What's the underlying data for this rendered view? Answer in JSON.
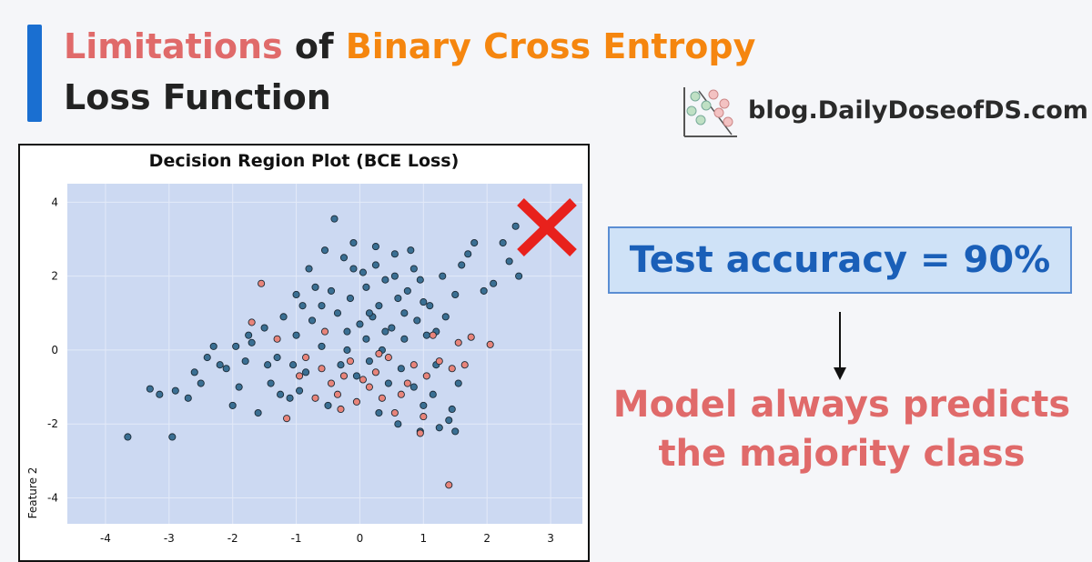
{
  "header": {
    "title_part1": "Limitations",
    "title_part2": "of",
    "title_part3": "Binary Cross Entropy",
    "title_line2": "Loss Function",
    "colors": {
      "part1": "#e06a6a",
      "part2": "#222222",
      "part3": "#f5860f",
      "line2": "#222222",
      "accent": "#1a6fd1"
    }
  },
  "brand": {
    "text": "blog.DailyDoseofDS.com",
    "icon": "scatter-logo-icon"
  },
  "accuracy": {
    "text": "Test accuracy = 90%"
  },
  "conclusion": {
    "line1": "Model always predicts",
    "line2": "the majority class"
  },
  "chart_data": {
    "type": "scatter",
    "title": "Decision Region Plot (BCE Loss)",
    "xlabel": "",
    "ylabel": "Feature 2",
    "xlim": [
      -4.6,
      3.5
    ],
    "ylim": [
      -4.7,
      4.5
    ],
    "xticks": [
      -4,
      -3,
      -2,
      -1,
      0,
      1,
      2,
      3
    ],
    "yticks": [
      -4,
      -2,
      0,
      2,
      4
    ],
    "grid": true,
    "background_region_color": "#ccd9f2",
    "marker_overlay": "red-x-icon",
    "series": [
      {
        "color": "#3a6f93",
        "points": [
          [
            -3.65,
            -2.35
          ],
          [
            -2.95,
            -2.35
          ],
          [
            -3.3,
            -1.05
          ],
          [
            -3.15,
            -1.2
          ],
          [
            -2.9,
            -1.1
          ],
          [
            -2.7,
            -1.3
          ],
          [
            -2.6,
            -0.6
          ],
          [
            -2.4,
            -0.2
          ],
          [
            -2.3,
            0.1
          ],
          [
            -2.1,
            -0.5
          ],
          [
            -1.9,
            -1.0
          ],
          [
            -2.0,
            -1.5
          ],
          [
            -1.8,
            -0.3
          ],
          [
            -1.7,
            0.2
          ],
          [
            -1.5,
            0.6
          ],
          [
            -1.4,
            -0.9
          ],
          [
            -1.3,
            -0.2
          ],
          [
            -1.2,
            0.9
          ],
          [
            -1.1,
            -1.3
          ],
          [
            -1.0,
            0.4
          ],
          [
            -0.9,
            1.2
          ],
          [
            -0.85,
            -0.6
          ],
          [
            -0.8,
            2.2
          ],
          [
            -0.7,
            1.7
          ],
          [
            -0.6,
            0.1
          ],
          [
            -0.55,
            2.7
          ],
          [
            -0.4,
            3.55
          ],
          [
            -0.35,
            1.0
          ],
          [
            -0.3,
            -0.4
          ],
          [
            -0.25,
            2.5
          ],
          [
            -0.2,
            0.5
          ],
          [
            -0.15,
            1.4
          ],
          [
            -0.1,
            2.9
          ],
          [
            -0.05,
            -0.7
          ],
          [
            0.0,
            0.7
          ],
          [
            0.05,
            2.1
          ],
          [
            0.1,
            1.7
          ],
          [
            0.15,
            -0.3
          ],
          [
            0.2,
            0.9
          ],
          [
            0.25,
            2.3
          ],
          [
            0.3,
            1.2
          ],
          [
            0.35,
            0.0
          ],
          [
            0.4,
            1.9
          ],
          [
            0.45,
            -0.9
          ],
          [
            0.5,
            0.6
          ],
          [
            0.55,
            2.0
          ],
          [
            0.6,
            1.4
          ],
          [
            0.65,
            -0.5
          ],
          [
            0.7,
            0.3
          ],
          [
            0.75,
            1.6
          ],
          [
            0.8,
            2.7
          ],
          [
            0.85,
            -1.0
          ],
          [
            0.9,
            0.8
          ],
          [
            0.95,
            1.9
          ],
          [
            1.0,
            -1.5
          ],
          [
            1.05,
            0.4
          ],
          [
            1.1,
            1.2
          ],
          [
            1.15,
            -1.2
          ],
          [
            1.2,
            -0.4
          ],
          [
            1.3,
            2.0
          ],
          [
            1.35,
            0.9
          ],
          [
            1.4,
            -1.9
          ],
          [
            1.45,
            -1.6
          ],
          [
            1.5,
            1.5
          ],
          [
            1.55,
            -0.9
          ],
          [
            1.6,
            2.3
          ],
          [
            1.7,
            2.6
          ],
          [
            1.8,
            2.9
          ],
          [
            1.95,
            1.6
          ],
          [
            2.1,
            1.8
          ],
          [
            2.25,
            2.9
          ],
          [
            2.45,
            3.35
          ],
          [
            2.5,
            2.0
          ],
          [
            2.35,
            2.4
          ],
          [
            -1.6,
            -1.7
          ],
          [
            -1.75,
            0.4
          ],
          [
            -1.25,
            -1.2
          ],
          [
            -0.95,
            -1.1
          ],
          [
            -0.5,
            -1.5
          ],
          [
            0.3,
            -1.7
          ],
          [
            0.6,
            -2.0
          ],
          [
            0.95,
            -2.2
          ],
          [
            1.25,
            -2.1
          ],
          [
            1.5,
            -2.2
          ],
          [
            -2.5,
            -0.9
          ],
          [
            -2.2,
            -0.4
          ],
          [
            -1.95,
            0.1
          ],
          [
            -1.45,
            -0.4
          ],
          [
            -1.05,
            -0.4
          ],
          [
            -0.75,
            0.8
          ],
          [
            -0.45,
            1.6
          ],
          [
            -0.2,
            0.0
          ],
          [
            0.1,
            0.3
          ],
          [
            0.4,
            0.5
          ],
          [
            0.7,
            1.0
          ],
          [
            1.0,
            1.3
          ],
          [
            1.2,
            0.5
          ],
          [
            0.85,
            2.2
          ],
          [
            0.55,
            2.6
          ],
          [
            0.25,
            2.8
          ],
          [
            -0.1,
            2.2
          ],
          [
            -0.6,
            1.2
          ],
          [
            -1.0,
            1.5
          ],
          [
            0.15,
            1.0
          ]
        ]
      },
      {
        "color": "#e8847a",
        "points": [
          [
            -1.55,
            1.8
          ],
          [
            -1.7,
            0.75
          ],
          [
            -1.3,
            0.3
          ],
          [
            -1.15,
            -1.85
          ],
          [
            -0.85,
            -0.2
          ],
          [
            -0.7,
            -1.3
          ],
          [
            -0.6,
            -0.5
          ],
          [
            -0.45,
            -0.9
          ],
          [
            -0.35,
            -1.2
          ],
          [
            -0.25,
            -0.7
          ],
          [
            -0.15,
            -0.3
          ],
          [
            -0.05,
            -1.4
          ],
          [
            0.05,
            -0.8
          ],
          [
            0.15,
            -1.0
          ],
          [
            0.25,
            -0.6
          ],
          [
            0.35,
            -1.3
          ],
          [
            0.45,
            -0.2
          ],
          [
            0.55,
            -1.7
          ],
          [
            0.65,
            -1.2
          ],
          [
            0.75,
            -0.9
          ],
          [
            0.85,
            -0.4
          ],
          [
            1.0,
            -1.8
          ],
          [
            1.05,
            -0.7
          ],
          [
            1.15,
            0.4
          ],
          [
            1.25,
            -0.3
          ],
          [
            1.45,
            -0.5
          ],
          [
            1.55,
            0.2
          ],
          [
            1.65,
            -0.4
          ],
          [
            1.75,
            0.35
          ],
          [
            2.05,
            0.15
          ],
          [
            1.4,
            -3.65
          ],
          [
            0.95,
            -2.25
          ],
          [
            -0.55,
            0.5
          ],
          [
            -0.95,
            -0.7
          ],
          [
            0.3,
            -0.1
          ],
          [
            -0.3,
            -1.6
          ]
        ]
      }
    ]
  }
}
